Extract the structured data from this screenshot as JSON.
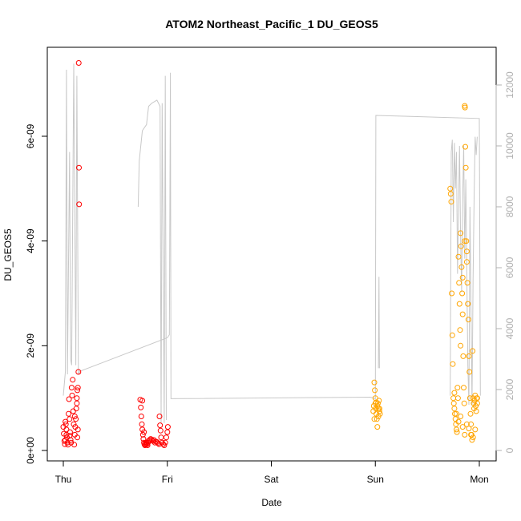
{
  "chart_data": {
    "type": "scatter",
    "title": "ATOM2 Northeast_Pacific_1 DU_GEOS5",
    "xlabel": "Date",
    "ylabel": "DU_GEOS5",
    "x_tick_labels": [
      "Thu",
      "Fri",
      "Sat",
      "Sun",
      "Mon"
    ],
    "y_left_ticks": [
      {
        "value": 0,
        "label": "0e+00"
      },
      {
        "value": 2e-09,
        "label": "2e-09"
      },
      {
        "value": 4e-09,
        "label": "4e-09"
      },
      {
        "value": 6e-09,
        "label": "6e-09"
      }
    ],
    "y_right_ticks": [
      0,
      2000,
      4000,
      6000,
      8000,
      10000,
      12000
    ],
    "ylim_left": [
      0,
      7.4e-09
    ],
    "ylim_right": [
      0,
      12600
    ],
    "xlim_days": [
      -0.2,
      4.1
    ],
    "colors": {
      "series_red": "#ff0000",
      "series_orange": "#ffa500",
      "altitude_line": "#c8c8c8",
      "axis": "#000000",
      "right_axis": "#b0b0b0"
    },
    "series": [
      {
        "color": "#ff0000",
        "marker": "open-circle",
        "points": [
          [
            0.0,
            4.5e-10
          ],
          [
            0.005,
            3.2e-10
          ],
          [
            0.01,
            1.8e-10
          ],
          [
            0.015,
            1.2e-10
          ],
          [
            0.02,
            5.5e-10
          ],
          [
            0.025,
            5e-10
          ],
          [
            0.03,
            4e-10
          ],
          [
            0.035,
            2.5e-10
          ],
          [
            0.04,
            1.5e-10
          ],
          [
            0.045,
            1.1e-10
          ],
          [
            0.05,
            7e-10
          ],
          [
            0.055,
            9.8e-10
          ],
          [
            0.06,
            6e-10
          ],
          [
            0.065,
            3.5e-10
          ],
          [
            0.07,
            2e-10
          ],
          [
            0.075,
            1.5e-10
          ],
          [
            0.08,
            1.2e-09
          ],
          [
            0.085,
            1.05e-09
          ],
          [
            0.09,
            1.35e-09
          ],
          [
            0.095,
            7.5e-10
          ],
          [
            0.1,
            5e-10
          ],
          [
            0.105,
            1.1e-10
          ],
          [
            0.11,
            3e-10
          ],
          [
            0.115,
            4.5e-10
          ],
          [
            0.12,
            6e-10
          ],
          [
            0.125,
            8e-10
          ],
          [
            0.13,
            1e-09
          ],
          [
            0.135,
            1.15e-09
          ],
          [
            0.14,
            1.2e-09
          ],
          [
            0.145,
            1.5e-09
          ],
          [
            0.15,
            5.4e-09
          ],
          [
            0.152,
            4.7e-09
          ],
          [
            0.148,
            7.4e-09
          ],
          [
            0.14,
            4e-10
          ],
          [
            0.135,
            2.5e-10
          ],
          [
            0.03,
            3e-10
          ],
          [
            0.02,
            2e-10
          ],
          [
            0.06,
            2.8e-10
          ],
          [
            0.11,
            6.5e-10
          ],
          [
            0.13,
            9e-10
          ]
        ]
      },
      {
        "color": "#ff0000",
        "marker": "open-circle",
        "points": [
          [
            0.74,
            9.7e-10
          ],
          [
            0.745,
            8.2e-10
          ],
          [
            0.75,
            6.5e-10
          ],
          [
            0.755,
            5e-10
          ],
          [
            0.76,
            4e-10
          ],
          [
            0.765,
            3e-10
          ],
          [
            0.77,
            2.2e-10
          ],
          [
            0.775,
            1.5e-10
          ],
          [
            0.78,
            1.2e-10
          ],
          [
            0.785,
            1e-10
          ],
          [
            0.79,
            1.1e-10
          ],
          [
            0.795,
            1.3e-10
          ],
          [
            0.8,
            1.5e-10
          ],
          [
            0.805,
            1.2e-10
          ],
          [
            0.81,
            1e-10
          ],
          [
            0.815,
            1.5e-10
          ],
          [
            0.82,
            1.8e-10
          ],
          [
            0.83,
            2e-10
          ],
          [
            0.84,
            2.2e-10
          ],
          [
            0.85,
            2e-10
          ],
          [
            0.86,
            1.8e-10
          ],
          [
            0.87,
            2e-10
          ],
          [
            0.88,
            1.5e-10
          ],
          [
            0.89,
            1.7e-10
          ],
          [
            0.9,
            1.6e-10
          ],
          [
            0.91,
            1.4e-10
          ],
          [
            0.92,
            1.2e-10
          ],
          [
            0.925,
            6.5e-10
          ],
          [
            0.93,
            4.8e-10
          ],
          [
            0.935,
            3.8e-10
          ],
          [
            0.94,
            2.5e-10
          ],
          [
            0.95,
            1.5e-10
          ],
          [
            0.96,
            1.2e-10
          ],
          [
            0.97,
            1e-10
          ],
          [
            0.98,
            1.5e-10
          ],
          [
            0.99,
            2.5e-10
          ],
          [
            1.0,
            3.5e-10
          ],
          [
            1.005,
            4.5e-10
          ],
          [
            0.76,
            9.5e-10
          ],
          [
            0.775,
            3.5e-10
          ]
        ]
      },
      {
        "color": "#ffa500",
        "marker": "open-circle",
        "points": [
          [
            2.98,
            7.5e-10
          ],
          [
            2.985,
            8.5e-10
          ],
          [
            2.99,
            1.3e-09
          ],
          [
            2.995,
            1.15e-09
          ],
          [
            3.0,
            9e-10
          ],
          [
            3.005,
            8e-10
          ],
          [
            3.01,
            7e-10
          ],
          [
            3.015,
            6e-10
          ],
          [
            3.02,
            4.5e-10
          ],
          [
            3.025,
            9e-10
          ],
          [
            3.03,
            8e-10
          ],
          [
            3.035,
            9.5e-10
          ],
          [
            3.04,
            7.5e-10
          ],
          [
            3.045,
            7e-10
          ],
          [
            2.99,
            6e-10
          ],
          [
            3.0,
            1e-09
          ],
          [
            3.02,
            8.5e-10
          ],
          [
            3.03,
            6.5e-10
          ],
          [
            3.04,
            8e-10
          ],
          [
            3.01,
            9.2e-10
          ]
        ]
      },
      {
        "color": "#ffa500",
        "marker": "open-circle",
        "points": [
          [
            3.72,
            5e-09
          ],
          [
            3.725,
            4.9e-09
          ],
          [
            3.73,
            4.75e-09
          ],
          [
            3.735,
            3e-09
          ],
          [
            3.74,
            2.2e-09
          ],
          [
            3.745,
            1.65e-09
          ],
          [
            3.75,
            1e-09
          ],
          [
            3.755,
            9e-10
          ],
          [
            3.76,
            8e-10
          ],
          [
            3.765,
            7e-10
          ],
          [
            3.77,
            6e-10
          ],
          [
            3.775,
            5e-10
          ],
          [
            3.78,
            4e-10
          ],
          [
            3.785,
            3.5e-10
          ],
          [
            3.79,
            1.2e-09
          ],
          [
            3.795,
            1e-09
          ],
          [
            3.8,
            3.7e-09
          ],
          [
            3.805,
            3.2e-09
          ],
          [
            3.81,
            2.8e-09
          ],
          [
            3.815,
            2.3e-09
          ],
          [
            3.82,
            4.15e-09
          ],
          [
            3.825,
            3.9e-09
          ],
          [
            3.83,
            3.5e-09
          ],
          [
            3.835,
            3e-09
          ],
          [
            3.84,
            2.6e-09
          ],
          [
            3.845,
            1.8e-09
          ],
          [
            3.85,
            1.2e-09
          ],
          [
            3.855,
            9e-10
          ],
          [
            3.86,
            6.58e-09
          ],
          [
            3.862,
            6.55e-09
          ],
          [
            3.865,
            5.8e-09
          ],
          [
            3.87,
            5.4e-09
          ],
          [
            3.875,
            4e-09
          ],
          [
            3.88,
            3.6e-09
          ],
          [
            3.885,
            3.2e-09
          ],
          [
            3.89,
            2.8e-09
          ],
          [
            3.895,
            2.5e-09
          ],
          [
            3.9,
            1.8e-09
          ],
          [
            3.905,
            1.5e-09
          ],
          [
            3.91,
            1e-09
          ],
          [
            3.915,
            7e-10
          ],
          [
            3.92,
            5e-10
          ],
          [
            3.925,
            3e-10
          ],
          [
            3.93,
            2e-10
          ],
          [
            3.935,
            1.9e-09
          ],
          [
            3.94,
            1e-09
          ],
          [
            3.945,
            9e-10
          ],
          [
            3.95,
            8e-10
          ],
          [
            3.955,
            9.5e-10
          ],
          [
            3.96,
            1.05e-09
          ],
          [
            3.965,
            8.5e-10
          ],
          [
            3.97,
            7.5e-10
          ],
          [
            3.975,
            1e-09
          ],
          [
            3.98,
            9e-10
          ],
          [
            3.76,
            1.1e-09
          ],
          [
            3.78,
            7e-10
          ],
          [
            3.8,
            5.5e-10
          ],
          [
            3.82,
            6.5e-10
          ],
          [
            3.84,
            4.5e-10
          ],
          [
            3.86,
            3e-10
          ],
          [
            3.88,
            5e-10
          ],
          [
            3.9,
            4.2e-10
          ],
          [
            3.92,
            3e-10
          ],
          [
            3.94,
            2.5e-10
          ],
          [
            3.96,
            4e-10
          ],
          [
            3.98,
            1e-09
          ],
          [
            3.82,
            2e-09
          ],
          [
            3.84,
            3.3e-09
          ],
          [
            3.86,
            4e-09
          ],
          [
            3.88,
            3.8e-09
          ]
        ]
      }
    ],
    "altitude_line": {
      "axis": "right",
      "segments": [
        [
          [
            0.0,
            1800
          ],
          [
            0.02,
            2600
          ],
          [
            0.03,
            12500
          ],
          [
            0.04,
            2500
          ],
          [
            0.06,
            9800
          ],
          [
            0.07,
            3000
          ],
          [
            0.08,
            2800
          ],
          [
            0.1,
            12700
          ],
          [
            0.12,
            2800
          ],
          [
            0.13,
            12300
          ],
          [
            0.145,
            2500
          ],
          [
            0.16,
            2600
          ],
          [
            1.0,
            3700
          ],
          [
            1.02,
            3800
          ],
          [
            1.03,
            12400
          ],
          [
            1.035,
            1700
          ],
          [
            2.95,
            1750
          ],
          [
            3.0,
            1700
          ],
          [
            3.005,
            11000
          ],
          [
            4.0,
            10900
          ],
          [
            4.01,
            1800
          ]
        ],
        [
          [
            0.72,
            8000
          ],
          [
            0.73,
            9500
          ],
          [
            0.76,
            10500
          ],
          [
            0.8,
            10700
          ],
          [
            0.82,
            11300
          ],
          [
            0.85,
            11400
          ],
          [
            0.9,
            11500
          ],
          [
            0.93,
            11300
          ],
          [
            0.94,
            900
          ],
          [
            0.95,
            11400
          ],
          [
            0.97,
            900
          ],
          [
            0.98,
            12300
          ],
          [
            0.99,
            1000
          ]
        ],
        [
          [
            3.03,
            2700
          ],
          [
            3.035,
            5700
          ],
          [
            3.04,
            2700
          ]
        ],
        [
          [
            3.72,
            1800
          ],
          [
            3.73,
            9800
          ],
          [
            3.74,
            10200
          ],
          [
            3.75,
            7500
          ],
          [
            3.76,
            10100
          ],
          [
            3.77,
            8600
          ],
          [
            3.78,
            9800
          ],
          [
            3.79,
            5800
          ],
          [
            3.8,
            7800
          ],
          [
            3.81,
            10000
          ],
          [
            3.82,
            7100
          ],
          [
            3.83,
            5200
          ],
          [
            3.84,
            8200
          ],
          [
            3.85,
            10000
          ],
          [
            3.86,
            6300
          ],
          [
            3.87,
            8900
          ],
          [
            3.88,
            5800
          ],
          [
            3.89,
            2800
          ],
          [
            3.9,
            1500
          ],
          [
            3.91,
            8000
          ],
          [
            3.92,
            4800
          ],
          [
            3.93,
            1500
          ],
          [
            3.94,
            5600
          ],
          [
            3.95,
            8300
          ],
          [
            3.96,
            10300
          ],
          [
            3.97,
            9700
          ],
          [
            3.98,
            10300
          ]
        ]
      ]
    }
  }
}
